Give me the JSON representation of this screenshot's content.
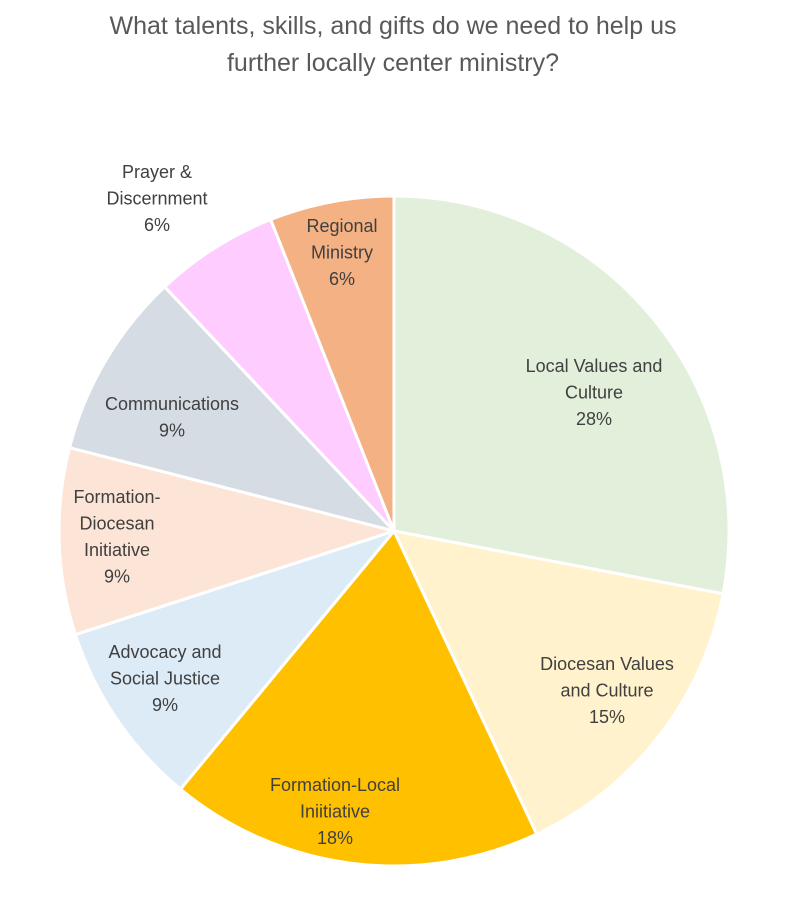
{
  "chart_data": {
    "type": "pie",
    "title_lines": [
      "What talents, skills, and gifts do we need to help us",
      "further locally center ministry?"
    ],
    "slices": [
      {
        "label_lines": [
          "Local Values and",
          "Culture"
        ],
        "value": 28,
        "value_label": "28%",
        "color": "#E2EFDA"
      },
      {
        "label_lines": [
          "Diocesan Values",
          "and Culture"
        ],
        "value": 15,
        "value_label": "15%",
        "color": "#FFF2CC"
      },
      {
        "label_lines": [
          "Formation-Local",
          "Iniitiative"
        ],
        "value": 18,
        "value_label": "18%",
        "color": "#FFC000"
      },
      {
        "label_lines": [
          "Advocacy and",
          "Social Justice"
        ],
        "value": 9,
        "value_label": "9%",
        "color": "#DDEBF7"
      },
      {
        "label_lines": [
          "Formation-",
          "Diocesan",
          "Initiative"
        ],
        "value": 9,
        "value_label": "9%",
        "color": "#FCE4D6"
      },
      {
        "label_lines": [
          "Communications"
        ],
        "value": 9,
        "value_label": "9%",
        "color": "#D6DCE4"
      },
      {
        "label_lines": [
          "Prayer &",
          "Discernment"
        ],
        "value": 6,
        "value_label": "6%",
        "color": "#FFCCFF"
      },
      {
        "label_lines": [
          "Regional",
          "Ministry"
        ],
        "value": 6,
        "value_label": "6%",
        "color": "#F4B183"
      }
    ]
  }
}
